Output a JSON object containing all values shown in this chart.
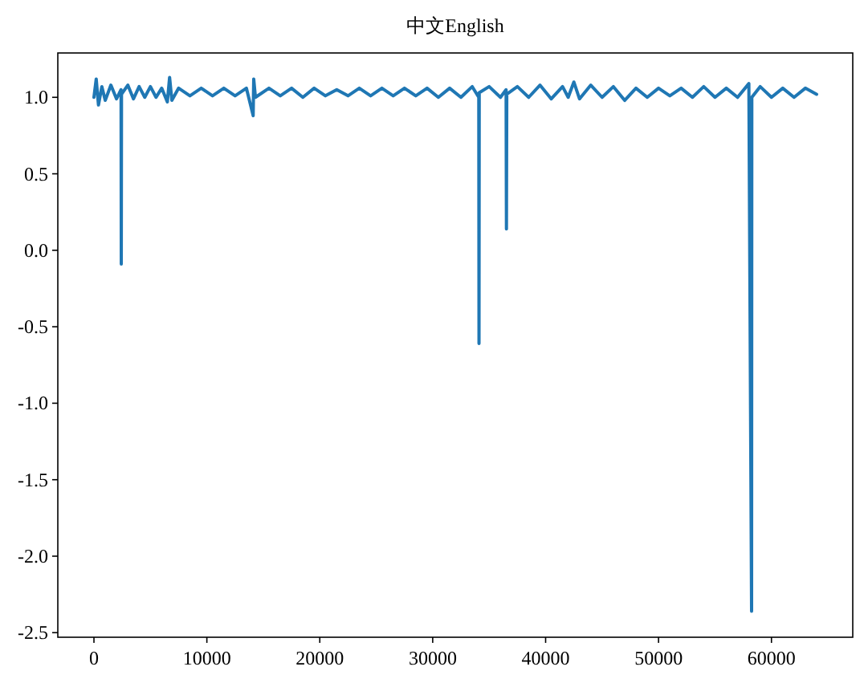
{
  "chart_data": {
    "type": "line",
    "title": "中文English",
    "xlim": [
      -3200,
      67200
    ],
    "xticks": [
      0,
      10000,
      20000,
      30000,
      40000,
      50000,
      60000
    ],
    "ylim": [
      -2.53,
      1.29
    ],
    "yticks": [
      {
        "value": -2.5,
        "label": "-2.5"
      },
      {
        "value": -2,
        "label": "-2.0"
      },
      {
        "value": -1.5,
        "label": "-1.5"
      },
      {
        "value": -1,
        "label": "-1.0"
      },
      {
        "value": -0.5,
        "label": "-0.5"
      },
      {
        "value": 0,
        "label": "0.0"
      },
      {
        "value": 0.5,
        "label": "0.5"
      },
      {
        "value": 1,
        "label": "1.0"
      }
    ],
    "grid": false,
    "series": [
      {
        "color": "#1f77b4",
        "x": [
          0,
          200,
          400,
          700,
          1000,
          1500,
          2000,
          2400,
          2420,
          2440,
          3000,
          3500,
          4000,
          4500,
          5000,
          5500,
          6000,
          6500,
          6700,
          6900,
          7500,
          8500,
          9500,
          10500,
          11500,
          12500,
          13500,
          14100,
          14150,
          14300,
          15500,
          16500,
          17500,
          18500,
          19500,
          20500,
          21500,
          22500,
          23500,
          24500,
          25500,
          26500,
          27500,
          28500,
          29500,
          30500,
          31500,
          32500,
          33500,
          34080,
          34100,
          34120,
          35000,
          36000,
          36500,
          36530,
          36560,
          37500,
          38500,
          39500,
          40500,
          41500,
          42000,
          42500,
          43000,
          44000,
          45000,
          46000,
          47000,
          48000,
          49000,
          50000,
          51000,
          52000,
          53000,
          54000,
          55000,
          56000,
          57000,
          58000,
          58240,
          58260,
          59000,
          60000,
          61000,
          62000,
          63000,
          64000
        ],
        "values": [
          1.0,
          1.12,
          0.95,
          1.07,
          0.98,
          1.08,
          0.99,
          1.05,
          -0.09,
          1.02,
          1.08,
          0.99,
          1.07,
          1.0,
          1.07,
          1.0,
          1.06,
          0.97,
          1.13,
          0.98,
          1.06,
          1.01,
          1.06,
          1.01,
          1.06,
          1.01,
          1.06,
          0.88,
          1.12,
          1.0,
          1.06,
          1.01,
          1.06,
          1.0,
          1.06,
          1.01,
          1.05,
          1.01,
          1.06,
          1.01,
          1.06,
          1.01,
          1.06,
          1.01,
          1.06,
          1.0,
          1.06,
          1.0,
          1.07,
          1.0,
          -0.61,
          1.03,
          1.07,
          1.0,
          1.05,
          0.14,
          1.02,
          1.07,
          1.0,
          1.08,
          0.99,
          1.07,
          1.0,
          1.1,
          0.99,
          1.08,
          1.0,
          1.07,
          0.98,
          1.06,
          1.0,
          1.06,
          1.01,
          1.06,
          1.0,
          1.07,
          1.0,
          1.06,
          1.0,
          1.09,
          -2.36,
          1.0,
          1.07,
          1.0,
          1.06,
          1.0,
          1.06,
          1.02
        ]
      }
    ]
  }
}
